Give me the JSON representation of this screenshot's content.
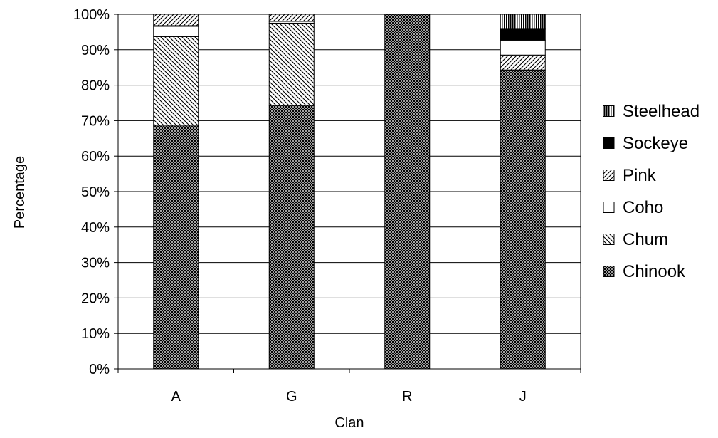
{
  "chart_data": {
    "type": "bar",
    "stacked": true,
    "percent_stacked": true,
    "categories": [
      "A",
      "G",
      "R",
      "J"
    ],
    "xlabel": "Clan",
    "ylabel": "Percentage",
    "ylim": [
      0,
      100
    ],
    "y_ticks": [
      0,
      10,
      20,
      30,
      40,
      50,
      60,
      70,
      80,
      90,
      100
    ],
    "y_tick_format": "percent",
    "grid": true,
    "legend_position": "right",
    "series": [
      {
        "name": "Chinook",
        "pattern": "dense-dots",
        "values": [
          68.5,
          74.3,
          100,
          84.3
        ]
      },
      {
        "name": "Chum",
        "pattern": "wide-diagonal-down",
        "values": [
          25.2,
          23.2,
          0,
          0
        ]
      },
      {
        "name": "Pink",
        "pattern": "diagonal-up",
        "values": [
          0,
          0,
          0,
          4.2
        ]
      },
      {
        "name": "Coho",
        "pattern": "white",
        "values": [
          2.9,
          0.5,
          0,
          4.2
        ]
      },
      {
        "name": "Sockeye",
        "pattern": "solid-black",
        "values": [
          0.2,
          0,
          0,
          3.1
        ]
      },
      {
        "name": "Steelhead",
        "pattern": "vertical-lines",
        "values": [
          0,
          0,
          0,
          4.2
        ]
      },
      {
        "name": "Pink",
        "pattern": "diagonal-up",
        "values": [
          3.2,
          2.0,
          0,
          0
        ]
      }
    ],
    "legend": [
      {
        "name": "Steelhead",
        "pattern": "vertical-lines"
      },
      {
        "name": "Sockeye",
        "pattern": "solid-black"
      },
      {
        "name": "Pink",
        "pattern": "diagonal-up"
      },
      {
        "name": "Coho",
        "pattern": "white"
      },
      {
        "name": "Chum",
        "pattern": "wide-diagonal-down"
      },
      {
        "name": "Chinook",
        "pattern": "dense-dots"
      }
    ]
  }
}
